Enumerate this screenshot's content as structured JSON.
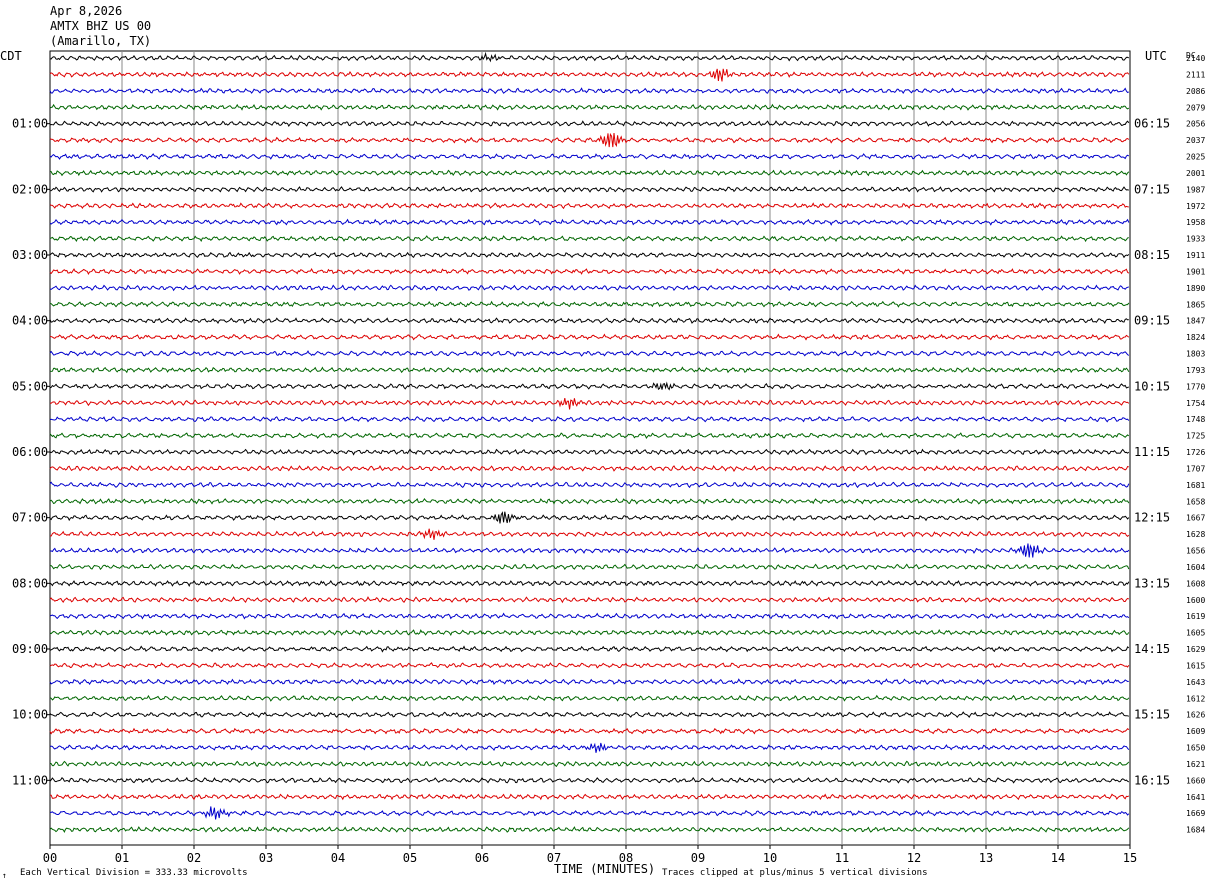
{
  "header": {
    "date": "Apr 8,2026",
    "station": "AMTX BHZ US 00",
    "location": "(Amarillo, TX)"
  },
  "left_tz": "CDT",
  "right_tz": "UTC",
  "dc_label": "DC",
  "footer": {
    "left_note": "Each Vertical Division =  333.33 microvolts",
    "xlabel": "TIME (MINUTES)",
    "right_note": "Traces clipped at plus/minus 5 vertical divisions",
    "corner_mark": "↑"
  },
  "colors": [
    "#000000",
    "#dd0000",
    "#0000cc",
    "#006600"
  ],
  "chart_data": {
    "type": "line",
    "title": "AMTX BHZ US 00 (Amarillo, TX) Apr 8,2026",
    "xlabel": "TIME (MINUTES)",
    "xlim": [
      0,
      15
    ],
    "x_ticks": [
      "00",
      "01",
      "02",
      "03",
      "04",
      "05",
      "06",
      "07",
      "08",
      "09",
      "10",
      "11",
      "12",
      "13",
      "14",
      "15"
    ],
    "grid": true,
    "trace_minutes": 15,
    "left_hour_labels": [
      "01:00",
      "02:00",
      "03:00",
      "04:00",
      "05:00",
      "06:00",
      "07:00",
      "08:00",
      "09:00",
      "10:00",
      "11:00"
    ],
    "right_hour_labels": [
      "06:15",
      "07:15",
      "08:15",
      "09:15",
      "10:15",
      "11:15",
      "12:15",
      "13:15",
      "14:15",
      "15:15",
      "16:15"
    ],
    "dc_offsets": [
      2140,
      2111,
      2086,
      2079,
      2056,
      2037,
      2025,
      2001,
      1987,
      1972,
      1958,
      1933,
      1911,
      1901,
      1890,
      1865,
      1847,
      1824,
      1803,
      1793,
      1770,
      1754,
      1748,
      1725,
      1726,
      1707,
      1681,
      1658,
      1667,
      1628,
      1656,
      1604,
      1608,
      1600,
      1619,
      1605,
      1629,
      1615,
      1643,
      1612,
      1626,
      1609,
      1650,
      1621,
      1660,
      1641,
      1669,
      1684
    ],
    "events": [
      {
        "trace": 0,
        "minute": 6.1,
        "amplitude": 0.8
      },
      {
        "trace": 1,
        "minute": 9.3,
        "amplitude": 1.6
      },
      {
        "trace": 5,
        "minute": 7.8,
        "amplitude": 2.4
      },
      {
        "trace": 20,
        "minute": 8.5,
        "amplitude": 1.0
      },
      {
        "trace": 21,
        "minute": 7.2,
        "amplitude": 1.2
      },
      {
        "trace": 28,
        "minute": 6.3,
        "amplitude": 1.8
      },
      {
        "trace": 29,
        "minute": 5.3,
        "amplitude": 1.2
      },
      {
        "trace": 30,
        "minute": 13.6,
        "amplitude": 2.0
      },
      {
        "trace": 42,
        "minute": 7.6,
        "amplitude": 1.0
      },
      {
        "trace": 46,
        "minute": 2.3,
        "amplitude": 1.6
      }
    ]
  }
}
